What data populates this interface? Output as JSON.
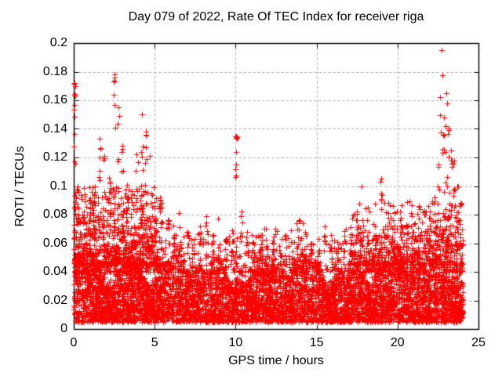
{
  "window": {
    "background": "#ffffff"
  },
  "chart_data": {
    "type": "scatter",
    "title": "Day 079 of 2022, Rate Of TEC Index for receiver riga",
    "xlabel": "GPS time / hours",
    "ylabel": "ROTI / TECUs",
    "series_name": "ROTI",
    "xlim": [
      0,
      25
    ],
    "ylim": [
      0,
      0.2
    ],
    "x_tick_values": [
      0,
      5,
      10,
      15,
      20,
      25
    ],
    "x_tick_labels": [
      "0",
      "5",
      "10",
      "15",
      "20",
      "25"
    ],
    "y_tick_values": [
      0,
      0.02,
      0.04,
      0.06,
      0.08,
      0.1,
      0.12,
      0.14,
      0.16,
      0.18,
      0.2
    ],
    "y_tick_labels": [
      "0",
      "0.02",
      "0.04",
      "0.06",
      "0.08",
      "0.1",
      "0.12",
      "0.14",
      "0.16",
      "0.18",
      "0.2"
    ],
    "grid": true,
    "grid_style": "dashed",
    "grid_color": "#a6a6a6",
    "axis_color": "#000000",
    "marker": "plus",
    "marker_color": "#ff0000",
    "marker_size_px": 7,
    "legend": "none",
    "x_data_range": [
      0,
      24.05
    ],
    "max_point": {
      "x": 22.7,
      "y": 0.195
    },
    "scatter_model": {
      "seed": 79,
      "base_band": {
        "count": 6200,
        "y_min": 0.005,
        "y_max": 0.043
      },
      "mid_scatter": {
        "count": 1400,
        "y_min": 0.04,
        "y_max": 0.072
      },
      "enhanced_periods": [
        {
          "hours": [
            0,
            5.4
          ],
          "count": 520,
          "y_min": 0.045,
          "y_max": 0.1
        },
        {
          "hours": [
            17,
            24.05
          ],
          "count": 330,
          "y_min": 0.045,
          "y_max": 0.09
        }
      ],
      "spikes": [
        [
          0.07,
          0.172,
          20
        ],
        [
          0.25,
          0.1,
          8
        ],
        [
          0.6,
          0.078,
          6
        ],
        [
          1.0,
          0.088,
          7
        ],
        [
          1.3,
          0.1,
          8
        ],
        [
          1.6,
          0.133,
          10
        ],
        [
          1.9,
          0.121,
          8
        ],
        [
          2.2,
          0.106,
          9
        ],
        [
          2.5,
          0.178,
          20
        ],
        [
          2.75,
          0.155,
          12
        ],
        [
          3.0,
          0.128,
          10
        ],
        [
          3.3,
          0.101,
          8
        ],
        [
          3.6,
          0.094,
          7
        ],
        [
          3.9,
          0.122,
          9
        ],
        [
          4.2,
          0.15,
          14
        ],
        [
          4.45,
          0.138,
          10
        ],
        [
          4.7,
          0.121,
          8
        ],
        [
          5.0,
          0.089,
          7
        ],
        [
          5.35,
          0.092,
          7
        ],
        [
          5.8,
          0.076,
          6
        ],
        [
          6.2,
          0.066,
          5
        ],
        [
          6.6,
          0.061,
          5
        ],
        [
          7.0,
          0.068,
          5
        ],
        [
          7.4,
          0.059,
          4
        ],
        [
          7.8,
          0.072,
          5
        ],
        [
          8.2,
          0.079,
          6
        ],
        [
          8.6,
          0.066,
          5
        ],
        [
          9.0,
          0.059,
          4
        ],
        [
          9.4,
          0.063,
          5
        ],
        [
          9.8,
          0.069,
          5
        ],
        [
          10.0,
          0.135,
          15
        ],
        [
          10.35,
          0.082,
          6
        ],
        [
          10.7,
          0.068,
          5
        ],
        [
          11.1,
          0.061,
          4
        ],
        [
          11.5,
          0.064,
          5
        ],
        [
          11.9,
          0.058,
          4
        ],
        [
          12.3,
          0.062,
          5
        ],
        [
          12.7,
          0.058,
          4
        ],
        [
          13.1,
          0.066,
          5
        ],
        [
          13.5,
          0.061,
          4
        ],
        [
          13.9,
          0.076,
          6
        ],
        [
          14.3,
          0.068,
          5
        ],
        [
          14.7,
          0.06,
          4
        ],
        [
          15.1,
          0.063,
          5
        ],
        [
          15.5,
          0.072,
          5
        ],
        [
          15.9,
          0.066,
          5
        ],
        [
          16.3,
          0.061,
          4
        ],
        [
          16.7,
          0.065,
          5
        ],
        [
          17.1,
          0.071,
          5
        ],
        [
          17.5,
          0.082,
          6
        ],
        [
          17.8,
          0.1,
          8
        ],
        [
          18.2,
          0.068,
          5
        ],
        [
          18.6,
          0.072,
          5
        ],
        [
          19.0,
          0.105,
          8
        ],
        [
          19.4,
          0.072,
          5
        ],
        [
          19.8,
          0.068,
          5
        ],
        [
          20.2,
          0.078,
          6
        ],
        [
          20.6,
          0.072,
          5
        ],
        [
          21.0,
          0.068,
          5
        ],
        [
          21.3,
          0.086,
          7
        ],
        [
          21.7,
          0.08,
          6
        ],
        [
          22.0,
          0.078,
          6
        ],
        [
          22.3,
          0.092,
          7
        ],
        [
          22.55,
          0.115,
          9
        ],
        [
          22.7,
          0.195,
          5
        ],
        [
          22.85,
          0.148,
          9
        ],
        [
          23.0,
          0.165,
          13
        ],
        [
          23.15,
          0.14,
          10
        ],
        [
          23.3,
          0.125,
          9
        ],
        [
          23.5,
          0.118,
          8
        ],
        [
          23.7,
          0.1,
          7
        ],
        [
          23.9,
          0.088,
          6
        ]
      ]
    }
  }
}
